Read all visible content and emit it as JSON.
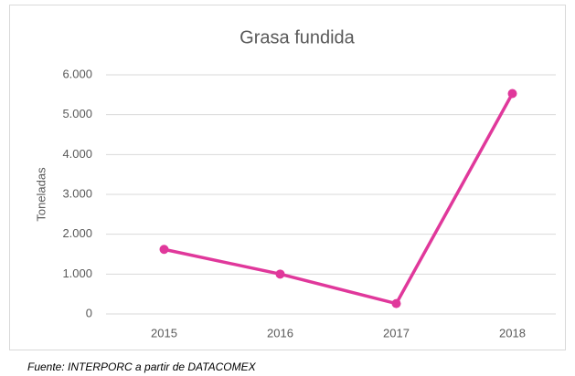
{
  "chart_data": {
    "type": "line",
    "title": "Grasa fundida",
    "y_label": "Toneladas",
    "categories": [
      "2015",
      "2016",
      "2017",
      "2018"
    ],
    "series": [
      {
        "name": "Grasa fundida",
        "color": "#e0389b",
        "values": [
          1620,
          1000,
          260,
          5530
        ]
      }
    ],
    "ylim": [
      0,
      6000
    ],
    "yticks": [
      0,
      {
        "value": 1000,
        "label": "1.000"
      },
      {
        "value": 2000,
        "label": "2.000"
      },
      {
        "value": 3000,
        "label": "3.000"
      },
      {
        "value": 4000,
        "label": "4.000"
      },
      {
        "value": 5000,
        "label": "5.000"
      },
      {
        "value": 6000,
        "label": "6.000"
      }
    ],
    "grid": true,
    "note": "Fuente: INTERPORC  a partir de DATACOMEX"
  }
}
